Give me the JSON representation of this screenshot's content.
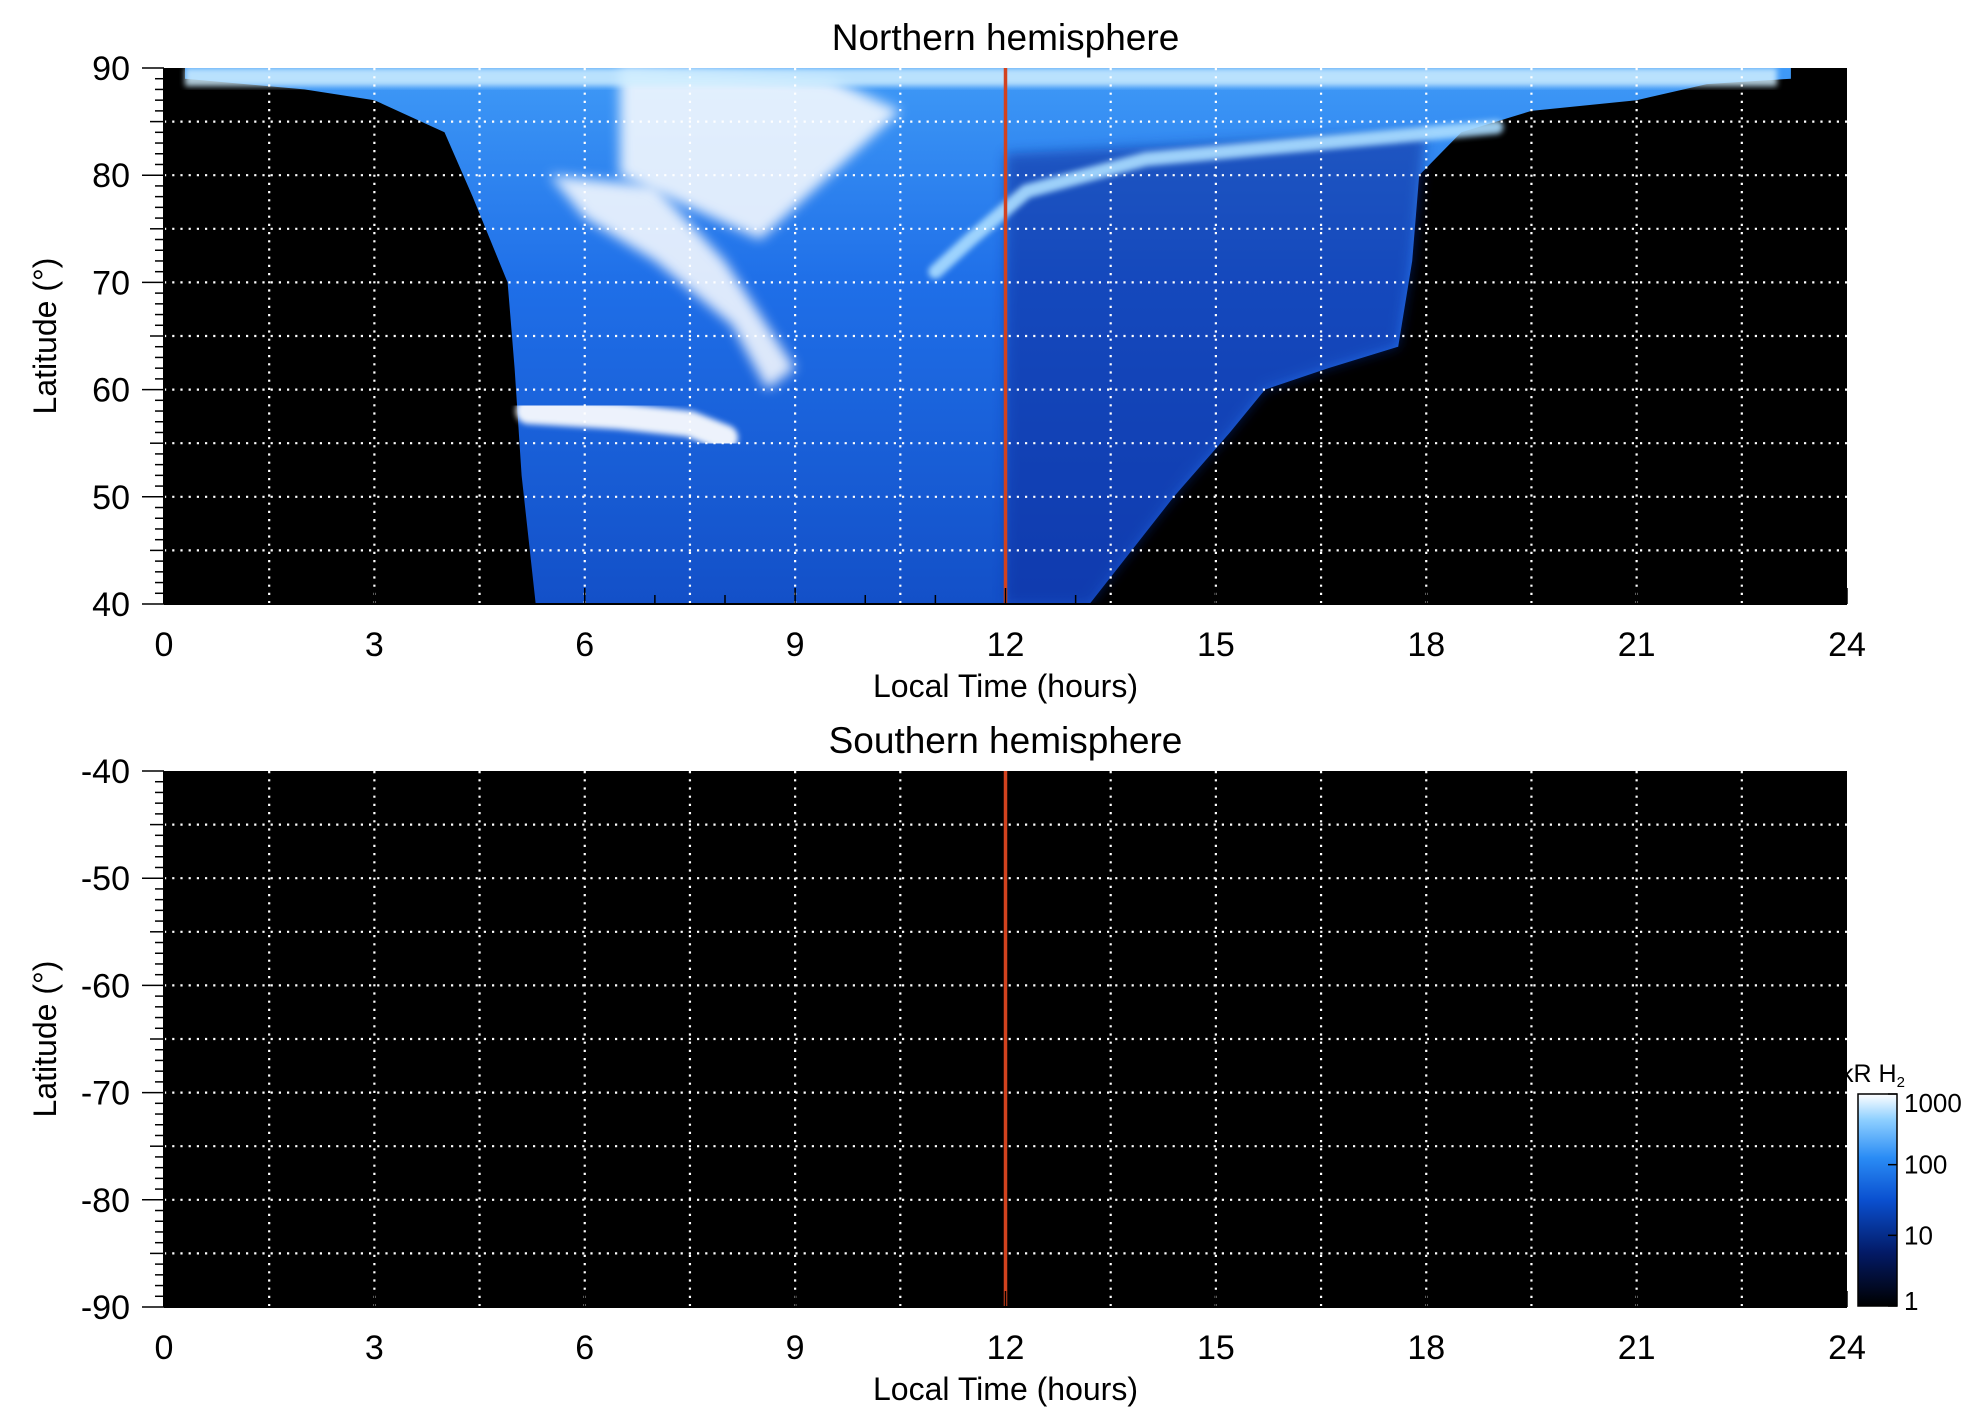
{
  "chart_data": [
    {
      "type": "heatmap",
      "title": "Northern hemisphere",
      "xlabel": "Local Time (hours)",
      "ylabel": "Latitude (°)",
      "xlim": [
        0,
        24
      ],
      "ylim": [
        40,
        90
      ],
      "xticks": [
        "0",
        "3",
        "6",
        "9",
        "12",
        "15",
        "18",
        "21",
        "24"
      ],
      "yticks": [
        "40",
        "50",
        "60",
        "70",
        "80",
        "90"
      ],
      "grid": true,
      "marker_line_x": 12,
      "marker_color": "#d2421e",
      "coverage_left_edge": [
        [
          0.3,
          89
        ],
        [
          2,
          88
        ],
        [
          3,
          87
        ],
        [
          4,
          84
        ],
        [
          4.4,
          78
        ],
        [
          4.9,
          70
        ],
        [
          5.0,
          62
        ],
        [
          5.1,
          52
        ],
        [
          5.3,
          40
        ]
      ],
      "coverage_right_edge": [
        [
          23.2,
          89
        ],
        [
          22,
          88.5
        ],
        [
          21,
          87
        ],
        [
          19.5,
          86
        ],
        [
          18.5,
          84
        ],
        [
          17.9,
          80
        ],
        [
          17.8,
          72
        ],
        [
          17.6,
          64
        ],
        [
          16.6,
          62
        ],
        [
          15.7,
          60
        ],
        [
          15.2,
          56
        ],
        [
          14.4,
          50
        ],
        [
          13.2,
          40
        ]
      ],
      "features": [
        {
          "kind": "band",
          "points": [
            [
              5.2,
              58
            ],
            [
              6.5,
              57.5
            ],
            [
              7.5,
              56.8
            ],
            [
              8.0,
              55.5
            ]
          ],
          "intensity": 1000
        },
        {
          "kind": "arc",
          "points": [
            [
              11.0,
              71
            ],
            [
              11.5,
              74
            ],
            [
              12.3,
              78.5
            ],
            [
              14.0,
              81.5
            ],
            [
              16.5,
              83
            ],
            [
              19.0,
              84.5
            ]
          ],
          "intensity": 300
        },
        {
          "kind": "patch",
          "points": [
            [
              5.5,
              80
            ],
            [
              7,
              79
            ],
            [
              8,
              72
            ],
            [
              8.6,
              66
            ],
            [
              9.0,
              62
            ],
            [
              8.6,
              60
            ],
            [
              8.1,
              66
            ],
            [
              7,
              72
            ],
            [
              6,
              76
            ]
          ],
          "intensity": 800
        },
        {
          "kind": "patch",
          "points": [
            [
              6.5,
              90
            ],
            [
              9.5,
              89
            ],
            [
              10.5,
              86
            ],
            [
              9.5,
              80
            ],
            [
              8.5,
              74
            ],
            [
              6.5,
              80
            ]
          ],
          "intensity": 1000
        }
      ]
    },
    {
      "type": "heatmap",
      "title": "Southern hemisphere",
      "xlabel": "Local Time (hours)",
      "ylabel": "Latitude (°)",
      "xlim": [
        0,
        24
      ],
      "ylim": [
        -90,
        -40
      ],
      "xticks": [
        "0",
        "3",
        "6",
        "9",
        "12",
        "15",
        "18",
        "21",
        "24"
      ],
      "yticks": [
        "-40",
        "-50",
        "-60",
        "-70",
        "-80",
        "-90"
      ],
      "grid": true,
      "marker_line_x": 12,
      "marker_color": "#d2421e",
      "features": []
    }
  ],
  "colorbar": {
    "label": "kR H",
    "label_sub": "2",
    "scale": "log",
    "range": [
      1,
      1000
    ],
    "ticks": [
      "1000",
      "100",
      "10",
      "1"
    ],
    "colors": [
      "#000000",
      "#031a66",
      "#0a50d0",
      "#2a8cf5",
      "#8fd0ff",
      "#ffffff"
    ]
  }
}
